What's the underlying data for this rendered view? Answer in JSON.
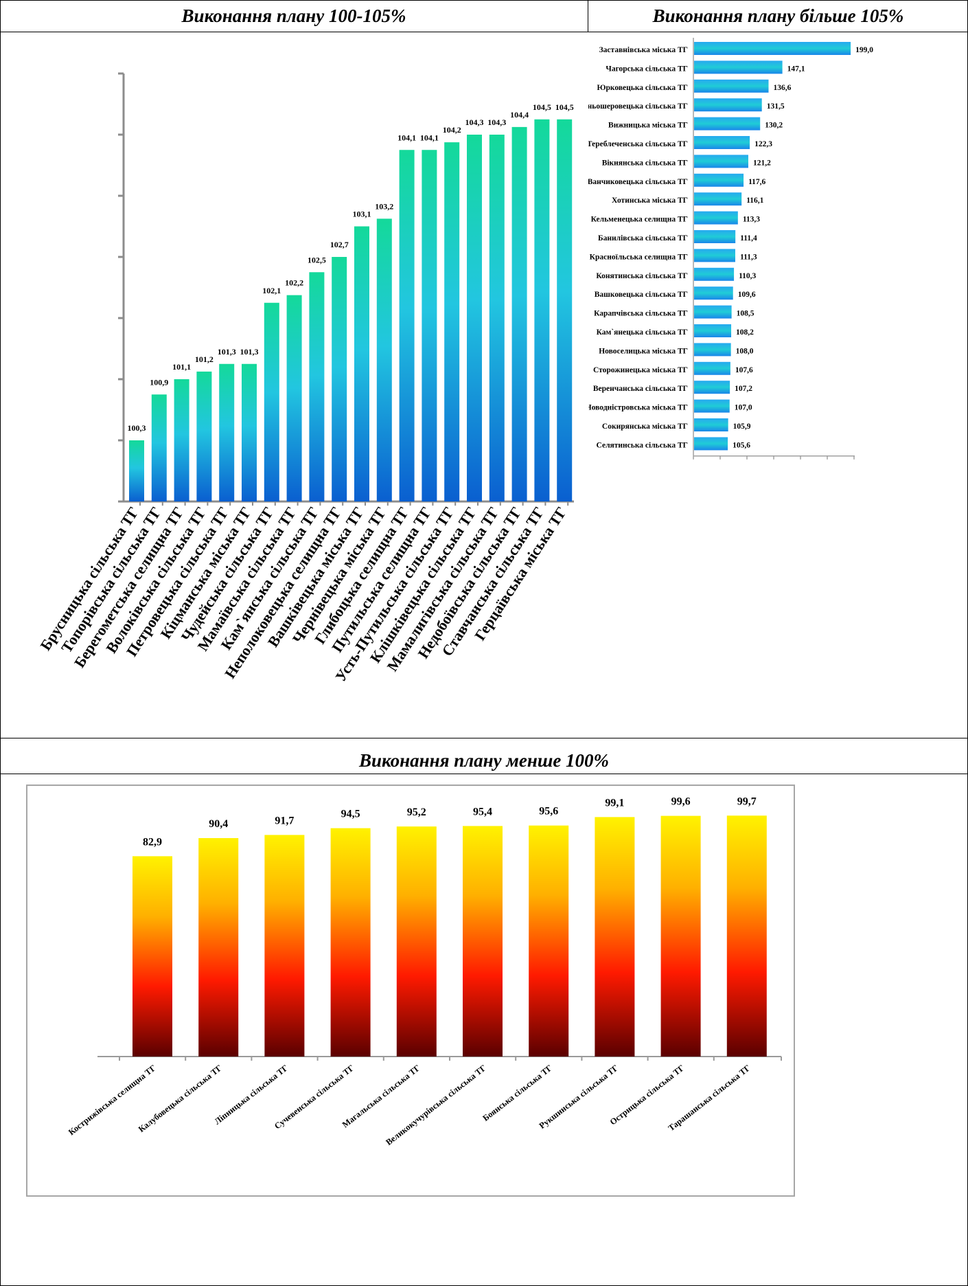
{
  "headers": {
    "left": "Виконання плану 100-105%",
    "right": "Виконання плану більше 105%",
    "bottom": "Виконання плану менше 100%"
  },
  "colors": {
    "green_top": "#14d99a",
    "blue_bottom": "#0a5fd0",
    "cyan_mid": "#22c6e0",
    "yellow_top": "#fff200",
    "red_mid": "#ff1a00",
    "dark_bottom": "#5a0000"
  },
  "chart_data": [
    {
      "id": "plan-100-105",
      "type": "bar",
      "orientation": "vertical",
      "title": "",
      "categories": [
        "Брусницька сільська ТГ",
        "Топорівська сільська ТГ",
        "Берегометська селищна ТГ",
        "Волоківська сільська ТГ",
        "Петровецька сільська ТГ",
        "Кіцманська міська ТГ",
        "Чудейська сільська ТГ",
        "Мамаївська сільська ТГ",
        "Кам`янська сільська ТГ",
        "Неполоковецька селищна ТГ",
        "Вашківецька міська ТГ",
        "Чернівецька міська ТГ",
        "Глибоцька селищна ТГ",
        "Путильська селищна ТГ",
        "Усть-Путильська сільська ТГ",
        "Клішківецька сільська ТГ",
        "Мамалигівська сільська ТГ",
        "Недобоївська сільська ТГ",
        "Ставчанська сільська ТГ",
        "Герцаївська міська ТГ"
      ],
      "values": [
        100.3,
        100.9,
        101.1,
        101.2,
        101.3,
        101.3,
        102.1,
        102.2,
        102.5,
        102.7,
        103.1,
        103.2,
        104.1,
        104.1,
        104.2,
        104.3,
        104.3,
        104.4,
        104.5,
        104.5
      ],
      "value_labels": [
        "100,3",
        "100,9",
        "101,1",
        "101,2",
        "101,3",
        "101,3",
        "102,1",
        "102,2",
        "102,5",
        "102,7",
        "103,1",
        "103,2",
        "104,1",
        "104,1",
        "104,2",
        "104,3",
        "104,3",
        "104,4",
        "104,5",
        "104,5"
      ],
      "ylim": [
        99.5,
        105.1
      ],
      "grid": false
    },
    {
      "id": "plan-above-105",
      "type": "bar",
      "orientation": "horizontal",
      "title": "",
      "categories": [
        "Заставнівська міська ТГ",
        "Чагорська сільська ТГ",
        "Юрковецька сільська ТГ",
        "Горішньошеровецька сільська ТГ",
        "Вижницька міська ТГ",
        "Тереблеченська сільська ТГ",
        "Вікнянська сільська ТГ",
        "Ванчиковецька сільська ТГ",
        "Хотинська міська ТГ",
        "Кельменецька селищна ТГ",
        "Банилівська сільська ТГ",
        "Красноїльська селищна ТГ",
        "Конятинська сільська ТГ",
        "Вашковецька сільська ТГ",
        "Карапчівська сільська ТГ",
        "Кам`янецька сільська ТГ",
        "Новоселицька міська ТГ",
        "Сторожинецька міська ТГ",
        "Веренчанська сільська ТГ",
        "Новодністровська міська ТГ",
        "Сокирянська міська ТГ",
        "Селятинська сільська ТГ"
      ],
      "values": [
        199.0,
        147.1,
        136.6,
        131.5,
        130.2,
        122.3,
        121.2,
        117.6,
        116.1,
        113.3,
        111.4,
        111.3,
        110.3,
        109.6,
        108.5,
        108.2,
        108.0,
        107.6,
        107.2,
        107.0,
        105.9,
        105.6
      ],
      "value_labels": [
        "199,0",
        "147,1",
        "136,6",
        "131,5",
        "130,2",
        "122,3",
        "121,2",
        "117,6",
        "116,1",
        "113,3",
        "111,4",
        "111,3",
        "110,3",
        "109,6",
        "108,5",
        "108,2",
        "108,0",
        "107,6",
        "107,2",
        "107,0",
        "105,9",
        "105,6"
      ],
      "xlim": [
        80,
        260
      ],
      "grid": false
    },
    {
      "id": "plan-below-100",
      "type": "bar",
      "orientation": "vertical",
      "title": "",
      "categories": [
        "Кострижівська селищна ТГ",
        "Калубовецька сільська ТГ",
        "Ліпницька сільська ТГ",
        "Сучевенська сільська ТГ",
        "Магальська сільська ТГ",
        "Великокучурівська сільська ТГ",
        "Боянська сільська ТГ",
        "Рукшинська сільська ТГ",
        "Острицька сільська ТГ",
        "Тарашанська сільська ТГ"
      ],
      "values": [
        82.9,
        90.4,
        91.7,
        94.5,
        95.2,
        95.4,
        95.6,
        99.1,
        99.6,
        99.7
      ],
      "value_labels": [
        "82,9",
        "90,4",
        "91,7",
        "94,5",
        "95,2",
        "95,4",
        "95,6",
        "99,1",
        "99,6",
        "99,7"
      ],
      "ylim": [
        0,
        112
      ],
      "grid": false
    }
  ]
}
